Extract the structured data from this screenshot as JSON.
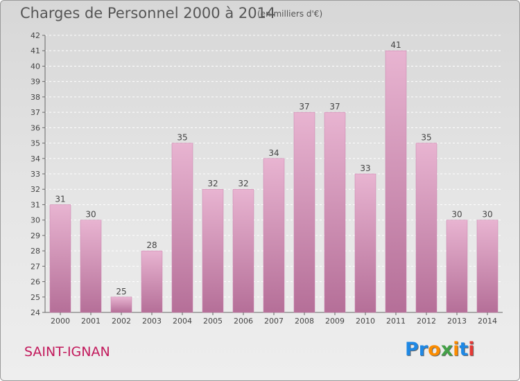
{
  "header": {
    "title": "Charges de Personnel 2000 à 2014",
    "subtitle": "(en milliers d'€)"
  },
  "footer": {
    "commune": "SAINT-IGNAN",
    "logo_text": "Proxiti"
  },
  "colors": {
    "bar": "#d98fba",
    "bar_light": "#e8b4d1",
    "bar_dark": "#b56f98",
    "commune_text": "#c2185b",
    "logo_letters": [
      "#1e88e5",
      "#1e88e5",
      "#fb8c00",
      "#43a047",
      "#fb8c00",
      "#1e88e5",
      "#e53935"
    ]
  },
  "chart_data": {
    "type": "bar",
    "categories": [
      "2000",
      "2001",
      "2002",
      "2003",
      "2004",
      "2005",
      "2006",
      "2007",
      "2008",
      "2009",
      "2010",
      "2011",
      "2012",
      "2013",
      "2014"
    ],
    "values": [
      31,
      30,
      25,
      28,
      35,
      32,
      32,
      34,
      37,
      37,
      33,
      41,
      35,
      30,
      30
    ],
    "title": "Charges de Personnel 2000 à 2014",
    "subtitle": "(en milliers d'€)",
    "xlabel": "",
    "ylabel": "",
    "ylim": [
      24,
      42
    ],
    "yticks": [
      24,
      25,
      26,
      27,
      28,
      29,
      30,
      31,
      32,
      33,
      34,
      35,
      36,
      37,
      38,
      39,
      40,
      41,
      42
    ],
    "grid": true,
    "legend": "none"
  }
}
